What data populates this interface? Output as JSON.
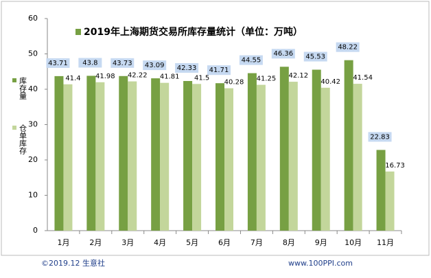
{
  "chart_data": {
    "type": "bar",
    "title": "2019年上海期货交易所库存量统计（单位：万吨）",
    "categories": [
      "1月",
      "2月",
      "3月",
      "4月",
      "5月",
      "6月",
      "7月",
      "8月",
      "9月",
      "10月",
      "11月"
    ],
    "series": [
      {
        "name": "库存量",
        "color": "#77a043",
        "values": [
          43.71,
          43.8,
          43.73,
          43.09,
          42.33,
          41.71,
          44.55,
          46.36,
          45.53,
          48.22,
          22.83
        ]
      },
      {
        "name": "仓单库存",
        "color": "#c3d69b",
        "values": [
          41.4,
          41.98,
          42.22,
          41.81,
          41.5,
          40.28,
          41.25,
          42.12,
          40.42,
          41.54,
          16.73
        ]
      }
    ],
    "ylim": [
      0,
      60
    ],
    "yticks": [
      0,
      10,
      20,
      30,
      40,
      50,
      60
    ],
    "footer_left": "©2019.12 生意社",
    "footer_right": "www.100PPI.com"
  }
}
